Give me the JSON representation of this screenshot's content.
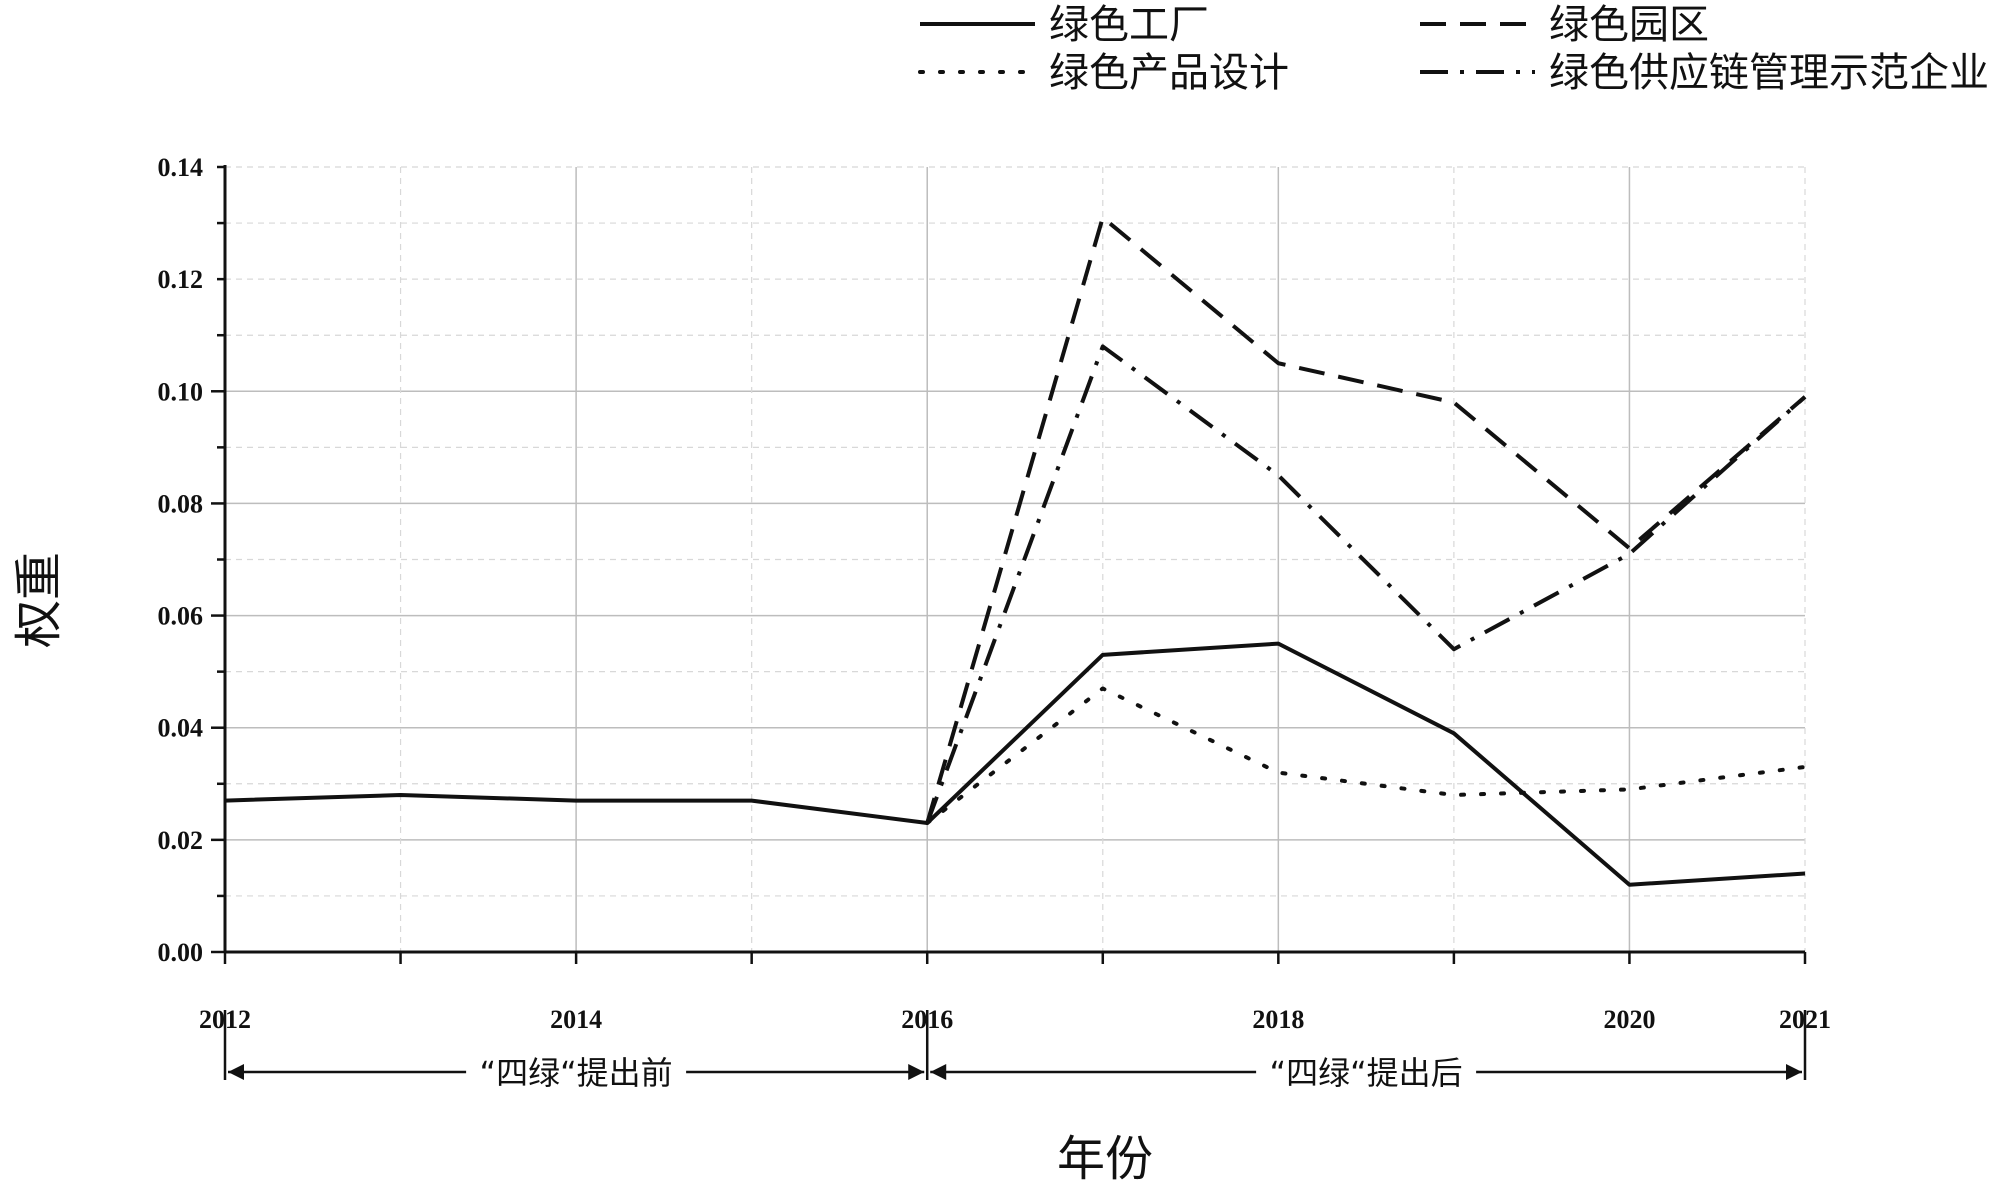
{
  "chart_data": {
    "type": "line",
    "title": "",
    "xlabel": "年份",
    "ylabel": "权重",
    "x": [
      2012,
      2013,
      2014,
      2015,
      2016,
      2017,
      2018,
      2019,
      2020,
      2021
    ],
    "xlim": [
      2012,
      2021
    ],
    "ylim": [
      0,
      0.14
    ],
    "x_ticks": [
      "2012",
      "2014",
      "2016",
      "2018",
      "2020",
      "2021"
    ],
    "y_ticks": [
      "0.00",
      "0.02",
      "0.04",
      "0.06",
      "0.08",
      "0.10",
      "0.12",
      "0.14"
    ],
    "grid": true,
    "legend_position": "top-right",
    "series": [
      {
        "name": "绿色工厂",
        "style": "solid",
        "color": "#111111",
        "values": [
          0.027,
          0.028,
          0.027,
          0.027,
          0.023,
          0.053,
          0.055,
          0.039,
          0.012,
          0.014
        ]
      },
      {
        "name": "绿色园区",
        "style": "dashed",
        "color": "#111111",
        "values": [
          null,
          null,
          null,
          null,
          0.023,
          0.131,
          0.105,
          0.098,
          0.072,
          0.099
        ]
      },
      {
        "name": "绿色产品设计",
        "style": "dotted",
        "color": "#111111",
        "values": [
          null,
          null,
          null,
          null,
          0.023,
          0.047,
          0.032,
          0.028,
          0.029,
          0.033
        ]
      },
      {
        "name": "绿色供应链管理示范企业",
        "style": "dashdot",
        "color": "#111111",
        "values": [
          null,
          null,
          null,
          null,
          0.023,
          0.108,
          0.085,
          0.054,
          0.071,
          0.099
        ]
      }
    ],
    "annotations": [
      {
        "text": "“四绿“提出前",
        "from": 2012,
        "to": 2016
      },
      {
        "text": "“四绿“提出后",
        "from": 2016,
        "to": 2021
      }
    ]
  }
}
